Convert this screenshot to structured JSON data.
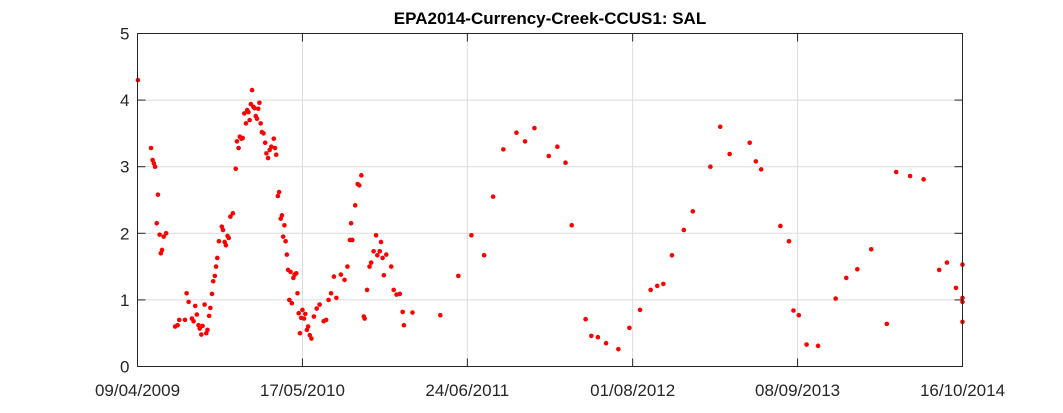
{
  "chart_data": {
    "type": "scatter",
    "title": "EPA2014-Currency-Creek-CCUS1: SAL",
    "xlabel": "",
    "ylabel": "",
    "x_tick_labels": [
      "09/04/2009",
      "17/05/2010",
      "24/06/2011",
      "01/08/2012",
      "08/09/2013",
      "16/10/2014"
    ],
    "x_tick_dates": [
      "2009-04-09",
      "2010-05-17",
      "2011-06-24",
      "2012-08-01",
      "2013-09-08",
      "2014-10-16"
    ],
    "xlim": [
      "2009-04-09",
      "2014-10-16"
    ],
    "y_ticks": [
      0,
      1,
      2,
      3,
      4,
      5
    ],
    "ylim": [
      0,
      5
    ],
    "grid": true,
    "marker_color": "#ff0000",
    "series": [
      {
        "points": [
          [
            "2009-04-10",
            4.3
          ],
          [
            "2009-05-12",
            3.28
          ],
          [
            "2009-05-16",
            3.1
          ],
          [
            "2009-05-19",
            3.05
          ],
          [
            "2009-05-22",
            3.0
          ],
          [
            "2009-05-26",
            2.15
          ],
          [
            "2009-05-29",
            2.58
          ],
          [
            "2009-06-02",
            1.98
          ],
          [
            "2009-06-05",
            1.7
          ],
          [
            "2009-06-08",
            1.75
          ],
          [
            "2009-06-12",
            1.95
          ],
          [
            "2009-06-18",
            2.0
          ],
          [
            "2009-07-10",
            0.6
          ],
          [
            "2009-07-16",
            0.62
          ],
          [
            "2009-07-20",
            0.7
          ],
          [
            "2009-08-03",
            0.7
          ],
          [
            "2009-08-07",
            1.1
          ],
          [
            "2009-08-12",
            0.97
          ],
          [
            "2009-08-20",
            0.72
          ],
          [
            "2009-08-24",
            0.68
          ],
          [
            "2009-08-28",
            0.91
          ],
          [
            "2009-09-01",
            0.78
          ],
          [
            "2009-09-05",
            0.62
          ],
          [
            "2009-09-08",
            0.57
          ],
          [
            "2009-09-12",
            0.48
          ],
          [
            "2009-09-15",
            0.61
          ],
          [
            "2009-09-20",
            0.93
          ],
          [
            "2009-09-24",
            0.5
          ],
          [
            "2009-09-27",
            0.55
          ],
          [
            "2009-10-01",
            0.76
          ],
          [
            "2009-10-04",
            0.88
          ],
          [
            "2009-10-08",
            1.09
          ],
          [
            "2009-10-11",
            1.28
          ],
          [
            "2009-10-15",
            1.36
          ],
          [
            "2009-10-18",
            1.5
          ],
          [
            "2009-10-21",
            1.63
          ],
          [
            "2009-10-25",
            1.88
          ],
          [
            "2009-11-01",
            2.1
          ],
          [
            "2009-11-04",
            2.05
          ],
          [
            "2009-11-08",
            1.87
          ],
          [
            "2009-11-11",
            1.82
          ],
          [
            "2009-11-15",
            1.96
          ],
          [
            "2009-11-18",
            1.93
          ],
          [
            "2009-11-22",
            2.25
          ],
          [
            "2009-11-28",
            2.3
          ],
          [
            "2009-12-05",
            2.97
          ],
          [
            "2009-12-08",
            3.38
          ],
          [
            "2009-12-12",
            3.28
          ],
          [
            "2009-12-15",
            3.45
          ],
          [
            "2009-12-19",
            3.42
          ],
          [
            "2009-12-22",
            3.43
          ],
          [
            "2009-12-26",
            3.8
          ],
          [
            "2009-12-30",
            3.65
          ],
          [
            "2010-01-02",
            3.85
          ],
          [
            "2010-01-05",
            3.82
          ],
          [
            "2010-01-08",
            3.7
          ],
          [
            "2010-01-11",
            3.94
          ],
          [
            "2010-01-14",
            4.15
          ],
          [
            "2010-01-17",
            3.9
          ],
          [
            "2010-01-20",
            3.88
          ],
          [
            "2010-01-23",
            3.76
          ],
          [
            "2010-01-26",
            3.72
          ],
          [
            "2010-01-29",
            3.87
          ],
          [
            "2010-02-01",
            3.96
          ],
          [
            "2010-02-04",
            3.65
          ],
          [
            "2010-02-07",
            3.52
          ],
          [
            "2010-02-11",
            3.5
          ],
          [
            "2010-02-15",
            3.36
          ],
          [
            "2010-02-18",
            3.2
          ],
          [
            "2010-02-22",
            3.13
          ],
          [
            "2010-02-26",
            3.25
          ],
          [
            "2010-03-02",
            3.3
          ],
          [
            "2010-03-08",
            3.42
          ],
          [
            "2010-03-11",
            3.28
          ],
          [
            "2010-03-14",
            3.18
          ],
          [
            "2010-03-18",
            2.56
          ],
          [
            "2010-03-21",
            2.62
          ],
          [
            "2010-03-25",
            2.22
          ],
          [
            "2010-03-28",
            2.27
          ],
          [
            "2010-03-31",
            1.95
          ],
          [
            "2010-04-03",
            2.12
          ],
          [
            "2010-04-06",
            1.88
          ],
          [
            "2010-04-09",
            1.68
          ],
          [
            "2010-04-12",
            1.45
          ],
          [
            "2010-04-15",
            1.0
          ],
          [
            "2010-04-18",
            1.42
          ],
          [
            "2010-04-21",
            0.95
          ],
          [
            "2010-04-25",
            1.33
          ],
          [
            "2010-04-28",
            1.38
          ],
          [
            "2010-05-02",
            1.4
          ],
          [
            "2010-05-05",
            1.1
          ],
          [
            "2010-05-08",
            0.8
          ],
          [
            "2010-05-11",
            0.5
          ],
          [
            "2010-05-14",
            0.73
          ],
          [
            "2010-05-17",
            0.85
          ],
          [
            "2010-05-21",
            0.72
          ],
          [
            "2010-05-24",
            0.79
          ],
          [
            "2010-05-28",
            0.55
          ],
          [
            "2010-05-31",
            0.6
          ],
          [
            "2010-06-04",
            0.47
          ],
          [
            "2010-06-08",
            0.42
          ],
          [
            "2010-06-14",
            0.75
          ],
          [
            "2010-06-21",
            0.87
          ],
          [
            "2010-06-28",
            0.93
          ],
          [
            "2010-07-08",
            0.68
          ],
          [
            "2010-07-14",
            0.7
          ],
          [
            "2010-07-20",
            1.0
          ],
          [
            "2010-07-26",
            1.1
          ],
          [
            "2010-08-02",
            1.35
          ],
          [
            "2010-08-08",
            1.03
          ],
          [
            "2010-08-19",
            1.38
          ],
          [
            "2010-08-28",
            1.3
          ],
          [
            "2010-09-04",
            1.5
          ],
          [
            "2010-09-10",
            1.9
          ],
          [
            "2010-09-13",
            2.15
          ],
          [
            "2010-09-16",
            1.9
          ],
          [
            "2010-09-23",
            2.42
          ],
          [
            "2010-09-29",
            2.74
          ],
          [
            "2010-10-03",
            2.72
          ],
          [
            "2010-10-08",
            2.87
          ],
          [
            "2010-10-14",
            0.75
          ],
          [
            "2010-10-16",
            0.72
          ],
          [
            "2010-10-22",
            1.15
          ],
          [
            "2010-10-28",
            1.5
          ],
          [
            "2010-11-01",
            1.56
          ],
          [
            "2010-11-07",
            1.73
          ],
          [
            "2010-11-13",
            1.97
          ],
          [
            "2010-11-16",
            1.67
          ],
          [
            "2010-11-22",
            1.73
          ],
          [
            "2010-11-25",
            1.87
          ],
          [
            "2010-11-29",
            1.63
          ],
          [
            "2010-12-02",
            1.37
          ],
          [
            "2010-12-08",
            1.68
          ],
          [
            "2010-12-20",
            1.5
          ],
          [
            "2010-12-26",
            1.15
          ],
          [
            "2011-01-02",
            1.08
          ],
          [
            "2011-01-10",
            1.09
          ],
          [
            "2011-01-17",
            0.82
          ],
          [
            "2011-01-20",
            0.62
          ],
          [
            "2011-02-10",
            0.81
          ],
          [
            "2011-04-19",
            0.77
          ],
          [
            "2011-06-02",
            1.36
          ],
          [
            "2011-07-04",
            1.97
          ],
          [
            "2011-08-04",
            1.67
          ],
          [
            "2011-08-26",
            2.55
          ],
          [
            "2011-09-20",
            3.26
          ],
          [
            "2011-10-22",
            3.51
          ],
          [
            "2011-11-12",
            3.38
          ],
          [
            "2011-12-05",
            3.58
          ],
          [
            "2012-01-09",
            3.16
          ],
          [
            "2012-01-30",
            3.3
          ],
          [
            "2012-02-19",
            3.06
          ],
          [
            "2012-03-05",
            2.12
          ],
          [
            "2012-04-08",
            0.71
          ],
          [
            "2012-04-22",
            0.46
          ],
          [
            "2012-05-08",
            0.44
          ],
          [
            "2012-05-28",
            0.35
          ],
          [
            "2012-06-27",
            0.26
          ],
          [
            "2012-07-24",
            0.58
          ],
          [
            "2012-08-19",
            0.85
          ],
          [
            "2012-09-14",
            1.15
          ],
          [
            "2012-09-30",
            1.21
          ],
          [
            "2012-10-15",
            1.24
          ],
          [
            "2012-11-05",
            1.67
          ],
          [
            "2012-12-04",
            2.05
          ],
          [
            "2012-12-26",
            2.33
          ],
          [
            "2013-02-07",
            3.0
          ],
          [
            "2013-03-03",
            3.6
          ],
          [
            "2013-03-26",
            3.19
          ],
          [
            "2013-05-14",
            3.36
          ],
          [
            "2013-05-29",
            3.08
          ],
          [
            "2013-06-11",
            2.96
          ],
          [
            "2013-07-28",
            2.11
          ],
          [
            "2013-08-18",
            1.88
          ],
          [
            "2013-08-29",
            0.84
          ],
          [
            "2013-09-11",
            0.77
          ],
          [
            "2013-09-30",
            0.33
          ],
          [
            "2013-10-28",
            0.31
          ],
          [
            "2013-12-10",
            1.02
          ],
          [
            "2014-01-05",
            1.33
          ],
          [
            "2014-02-01",
            1.46
          ],
          [
            "2014-03-07",
            1.76
          ],
          [
            "2014-04-14",
            0.64
          ],
          [
            "2014-05-07",
            2.92
          ],
          [
            "2014-06-10",
            2.86
          ],
          [
            "2014-07-13",
            2.81
          ],
          [
            "2014-08-20",
            1.45
          ],
          [
            "2014-09-08",
            1.56
          ],
          [
            "2014-09-30",
            1.18
          ],
          [
            "2014-10-19",
            0.67
          ],
          [
            "2014-11-29",
            0.97
          ],
          [
            "2014-12-14",
            1.03
          ],
          [
            "2015-01-17",
            1.53
          ]
        ]
      }
    ]
  }
}
